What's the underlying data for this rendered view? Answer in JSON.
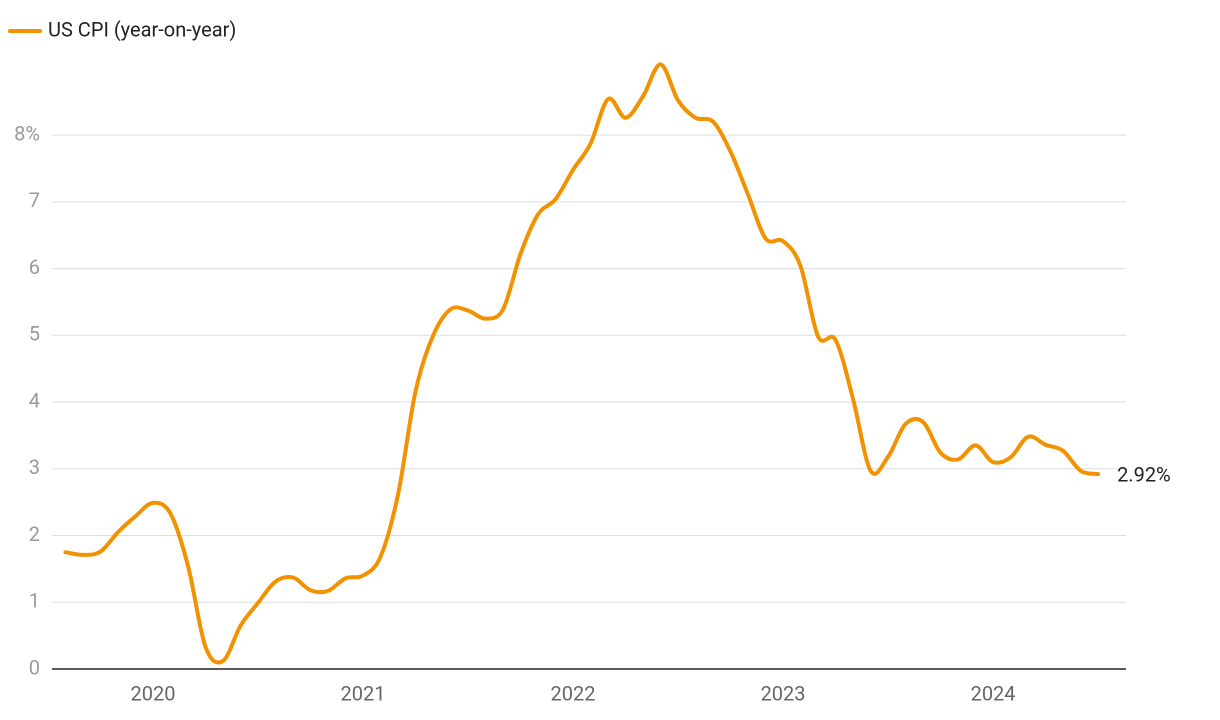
{
  "chart_data": {
    "type": "line",
    "x": [
      2019.583,
      2019.667,
      2019.75,
      2019.833,
      2019.917,
      2020,
      2020.083,
      2020.167,
      2020.25,
      2020.333,
      2020.417,
      2020.5,
      2020.583,
      2020.667,
      2020.75,
      2020.833,
      2020.917,
      2021,
      2021.083,
      2021.167,
      2021.25,
      2021.333,
      2021.417,
      2021.5,
      2021.583,
      2021.667,
      2021.75,
      2021.833,
      2021.917,
      2022,
      2022.083,
      2022.167,
      2022.25,
      2022.333,
      2022.417,
      2022.5,
      2022.583,
      2022.667,
      2022.75,
      2022.833,
      2022.917,
      2023,
      2023.083,
      2023.167,
      2023.25,
      2023.333,
      2023.417,
      2023.5,
      2023.583,
      2023.667,
      2023.75,
      2023.833,
      2023.917,
      2024,
      2024.083,
      2024.167,
      2024.25,
      2024.333,
      2024.417,
      2024.5
    ],
    "series": [
      {
        "name": "US CPI (year-on-year)",
        "color": "#f39200",
        "values": [
          1.75,
          1.71,
          1.76,
          2.05,
          2.29,
          2.49,
          2.33,
          1.54,
          0.33,
          0.12,
          0.65,
          0.99,
          1.31,
          1.37,
          1.18,
          1.17,
          1.36,
          1.4,
          1.68,
          2.62,
          4.16,
          4.99,
          5.39,
          5.37,
          5.25,
          5.39,
          6.22,
          6.81,
          7.04,
          7.48,
          7.87,
          8.54,
          8.26,
          8.58,
          9.06,
          8.52,
          8.26,
          8.2,
          7.75,
          7.11,
          6.45,
          6.41,
          6.04,
          4.98,
          4.93,
          4.05,
          2.97,
          3.18,
          3.67,
          3.7,
          3.24,
          3.14,
          3.35,
          3.1,
          3.17,
          3.48,
          3.36,
          3.27,
          2.97,
          2.92
        ]
      }
    ],
    "end_label": "2.92%",
    "xlim": [
      2019.519,
      2024.633
    ],
    "xticks": [
      2020,
      2021,
      2022,
      2023,
      2024
    ],
    "ylim": [
      0,
      9.2
    ],
    "yticks": [
      0,
      1,
      2,
      3,
      4,
      5,
      6,
      7,
      {
        "value": 8,
        "label": "8%"
      }
    ],
    "grid": true
  }
}
